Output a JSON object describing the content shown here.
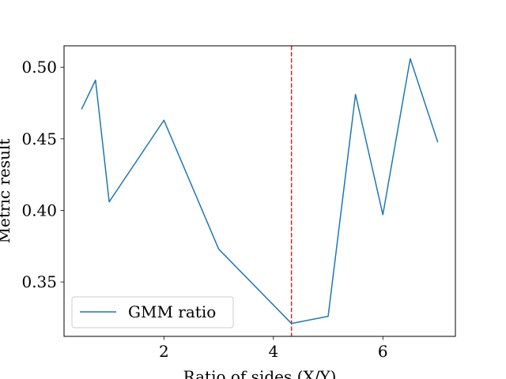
{
  "chart_data": {
    "type": "line",
    "xlabel": "Ratio of sides (X/Y)",
    "ylabel": "Metric result",
    "xlim": [
      0.175,
      7.325
    ],
    "ylim": [
      0.312,
      0.515
    ],
    "x_ticks": [
      2,
      4,
      6
    ],
    "y_ticks": [
      0.35,
      0.4,
      0.45,
      0.5
    ],
    "x_tick_labels": [
      "2",
      "4",
      "6"
    ],
    "y_tick_labels": [
      "0.35",
      "0.40",
      "0.45",
      "0.50"
    ],
    "grid": false,
    "legend_position": "lower-left",
    "series": [
      {
        "name": "GMM ratio",
        "color": "#1f77b4",
        "x": [
          0.5,
          0.75,
          1.0,
          2.0,
          3.0,
          4.33,
          5.0,
          5.5,
          6.0,
          6.5,
          7.0
        ],
        "y": [
          0.471,
          0.491,
          0.406,
          0.463,
          0.373,
          0.321,
          0.326,
          0.481,
          0.397,
          0.506,
          0.448
        ]
      }
    ],
    "reference_line": {
      "x": 4.33,
      "color": "#d62728",
      "style": "dashed"
    }
  }
}
